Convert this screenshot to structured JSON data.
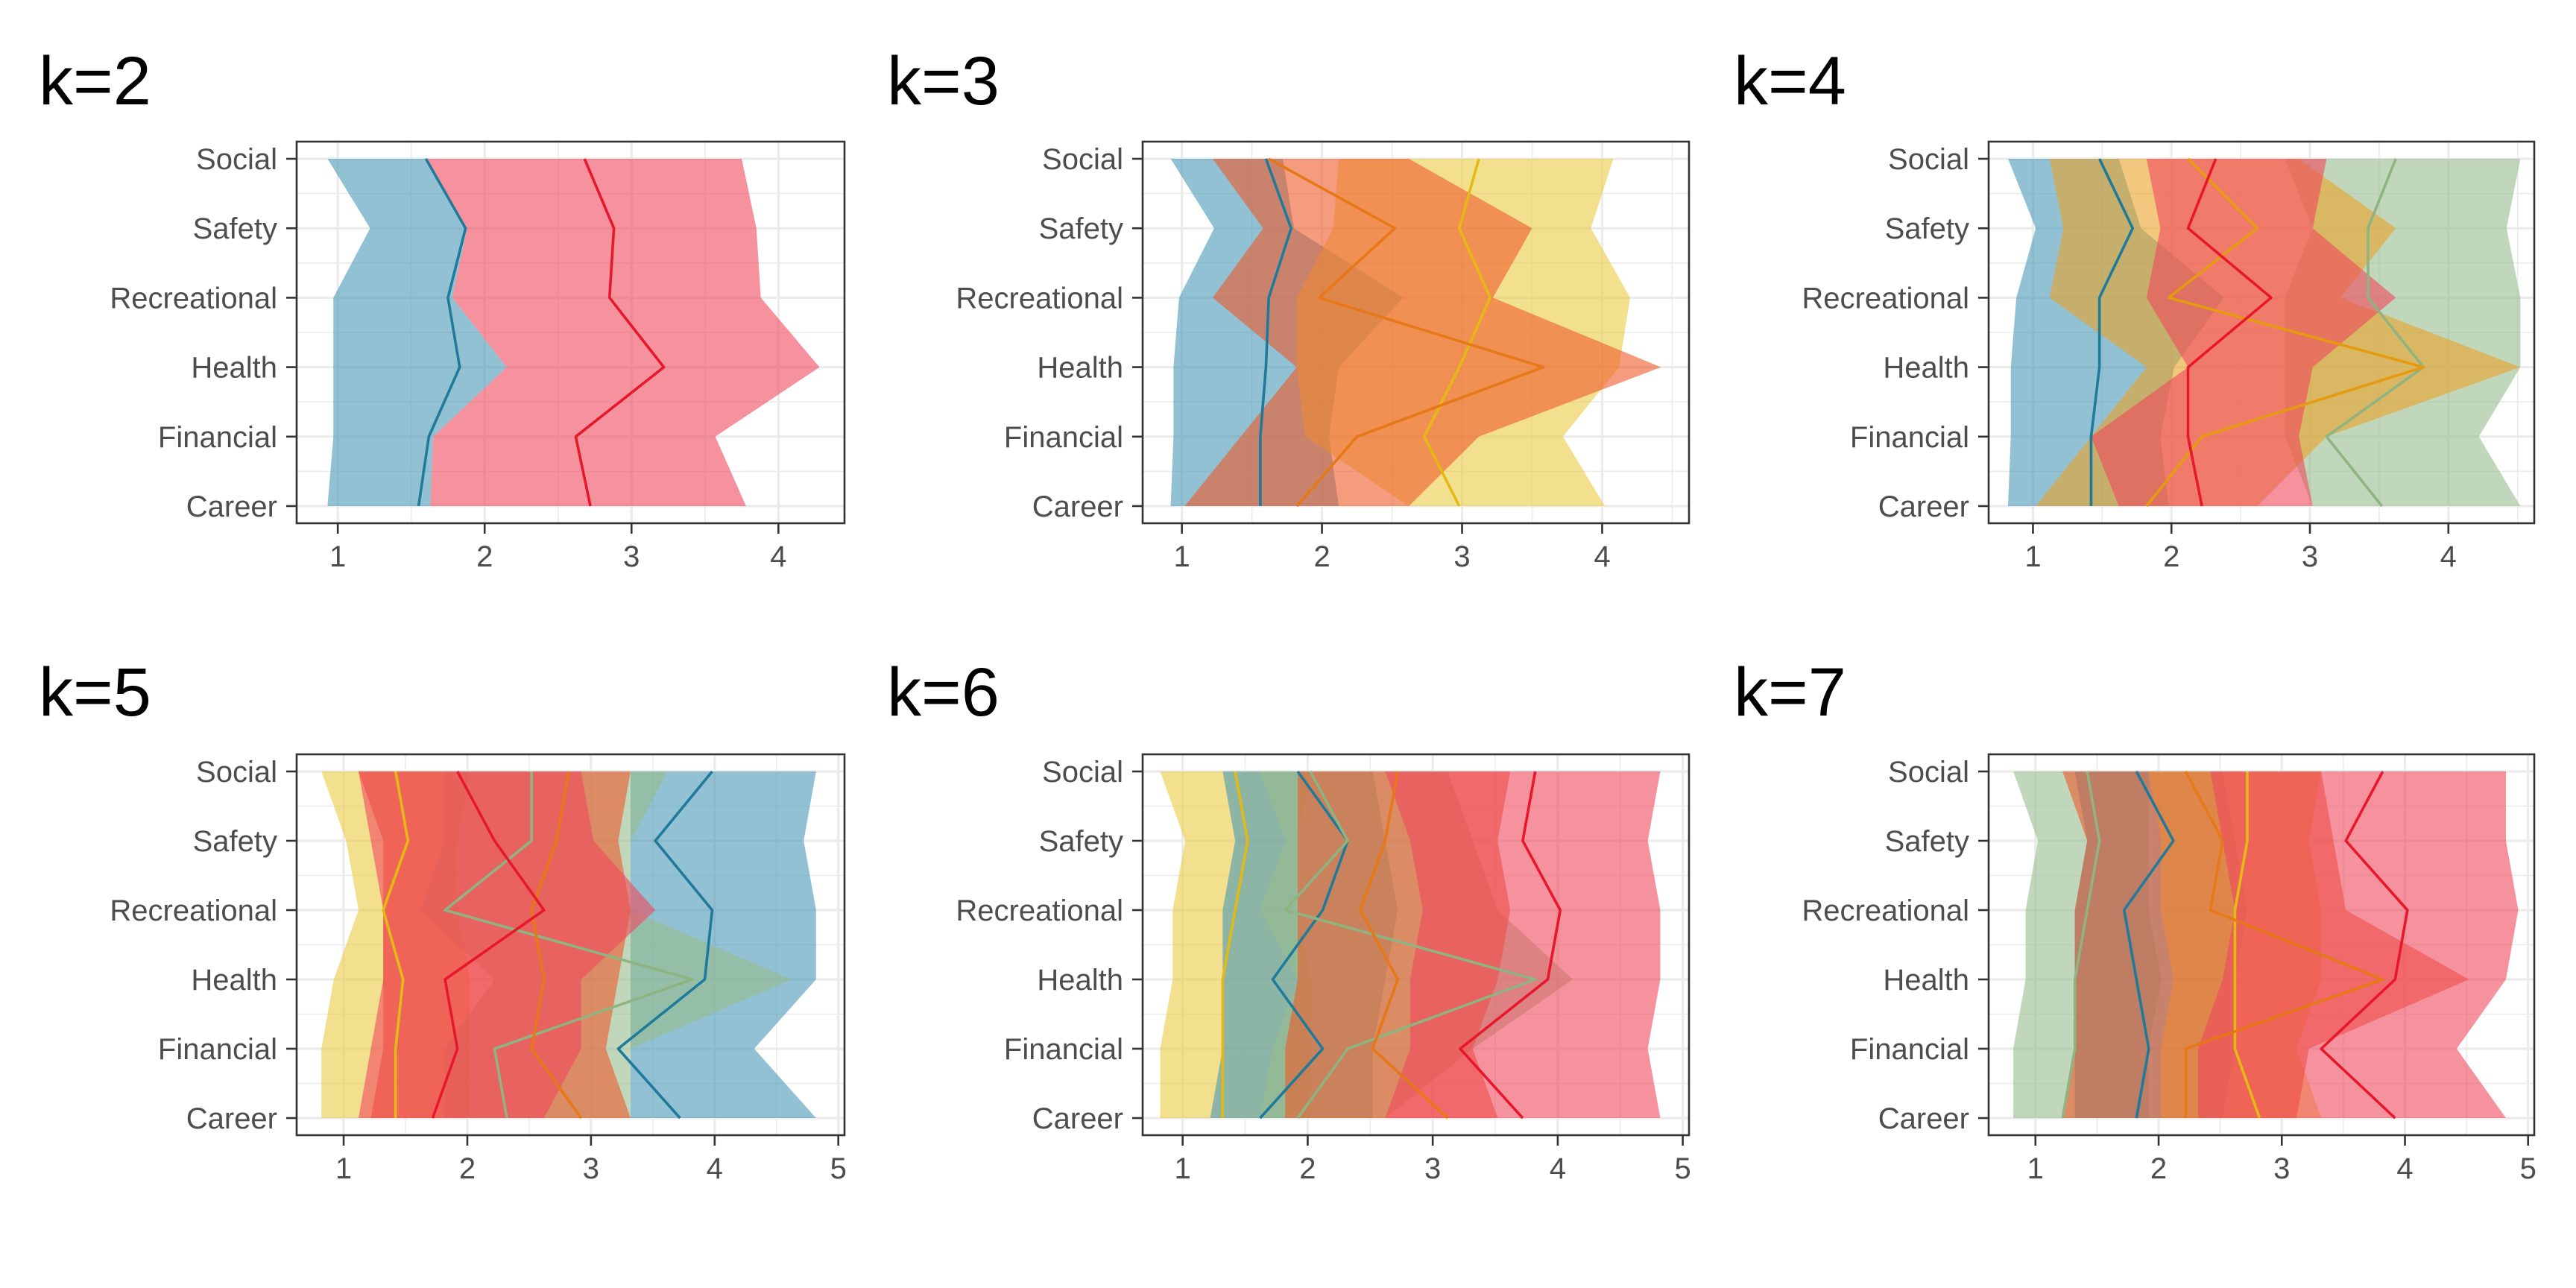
{
  "colors": {
    "blue": "#4a98b5",
    "blue_line": "#1f7a9b",
    "red": "#f0475e",
    "red_line": "#e8182c",
    "yellow": "#ebcc45",
    "yellow_line": "#e5b915",
    "orange": "#ee5a2a",
    "orange_line": "#e67817",
    "sage": "#98bd8d",
    "sage_line": "#8fb381",
    "teal": "#6ab09e",
    "teal_line": "#4aa69a",
    "panel_border": "#333333",
    "grid": "#ebebeb"
  },
  "chart_data": [
    {
      "type": "area",
      "title": "k=2",
      "categories": [
        "Career",
        "Financial",
        "Health",
        "Recreational",
        "Safety",
        "Social"
      ],
      "xlim": [
        0.72,
        4.45
      ],
      "xticks": [
        1,
        2,
        3,
        4
      ],
      "series": [
        {
          "color": "blue",
          "low": [
            0.93,
            0.97,
            0.97,
            0.97,
            1.22,
            0.93
          ],
          "mid": [
            1.55,
            1.62,
            1.83,
            1.75,
            1.87,
            1.6
          ],
          "high": [
            1.63,
            1.65,
            2.15,
            1.78,
            1.88,
            1.6
          ]
        },
        {
          "color": "red",
          "low": [
            1.63,
            1.65,
            2.15,
            1.78,
            1.88,
            1.6
          ],
          "mid": [
            2.72,
            2.62,
            3.22,
            2.85,
            2.88,
            2.68
          ],
          "high": [
            3.78,
            3.57,
            4.28,
            3.88,
            3.85,
            3.75
          ]
        }
      ]
    },
    {
      "type": "area",
      "title": "k=3",
      "categories": [
        "Career",
        "Financial",
        "Health",
        "Recreational",
        "Safety",
        "Social"
      ],
      "xlim": [
        0.72,
        4.62
      ],
      "xticks": [
        1,
        2,
        3,
        4
      ],
      "series": [
        {
          "color": "blue",
          "low": [
            0.92,
            0.94,
            0.94,
            0.98,
            1.23,
            0.92
          ],
          "mid": [
            1.56,
            1.56,
            1.6,
            1.62,
            1.78,
            1.6
          ],
          "high": [
            2.12,
            2.05,
            2.12,
            2.58,
            1.8,
            1.72
          ]
        },
        {
          "color": "yellow",
          "low": [
            2.62,
            1.88,
            1.82,
            1.82,
            2.08,
            2.12
          ],
          "mid": [
            2.98,
            2.73,
            2.98,
            3.2,
            2.98,
            3.12
          ],
          "high": [
            4.02,
            3.72,
            4.12,
            4.2,
            3.92,
            4.08
          ]
        },
        {
          "color": "orange",
          "low": [
            1.02,
            1.42,
            1.82,
            1.22,
            1.58,
            1.22
          ],
          "mid": [
            1.82,
            2.25,
            3.58,
            1.98,
            2.52,
            1.62
          ],
          "high": [
            2.62,
            3.12,
            4.42,
            3.22,
            3.5,
            2.62
          ]
        }
      ]
    },
    {
      "type": "area",
      "title": "k=4",
      "categories": [
        "Career",
        "Financial",
        "Health",
        "Recreational",
        "Safety",
        "Social"
      ],
      "xlim": [
        0.68,
        4.62
      ],
      "xticks": [
        1,
        2,
        3,
        4
      ],
      "series": [
        {
          "color": "blue",
          "low": [
            0.82,
            0.84,
            0.84,
            0.88,
            1.02,
            0.82
          ],
          "mid": [
            1.42,
            1.42,
            1.48,
            1.48,
            1.72,
            1.48
          ],
          "high": [
            1.98,
            1.92,
            2.02,
            2.38,
            1.78,
            1.62
          ]
        },
        {
          "color": "sage",
          "low": [
            3.02,
            2.82,
            2.82,
            2.82,
            3.02,
            2.82
          ],
          "mid": [
            3.52,
            3.12,
            3.82,
            3.42,
            3.42,
            3.62
          ],
          "high": [
            4.52,
            4.22,
            4.52,
            4.52,
            4.42,
            4.52
          ]
        },
        {
          "color": "orange_gold",
          "low": [
            1.02,
            1.42,
            1.82,
            1.12,
            1.22,
            1.12
          ],
          "mid": [
            1.82,
            2.22,
            3.82,
            1.98,
            2.62,
            2.12
          ],
          "high": [
            2.62,
            3.12,
            4.52,
            3.22,
            3.62,
            2.92
          ]
        },
        {
          "color": "red",
          "low": [
            1.62,
            1.42,
            2.12,
            1.82,
            1.92,
            1.82
          ],
          "mid": [
            2.22,
            2.12,
            2.12,
            2.72,
            2.12,
            2.32
          ],
          "high": [
            3.02,
            2.92,
            3.02,
            3.62,
            3.02,
            3.12
          ]
        }
      ]
    },
    {
      "type": "area",
      "title": "k=5",
      "categories": [
        "Career",
        "Financial",
        "Health",
        "Recreational",
        "Safety",
        "Social"
      ],
      "xlim": [
        0.62,
        5.05
      ],
      "xticks": [
        1,
        2,
        3,
        4,
        5
      ],
      "series": [
        {
          "color": "yellow",
          "low": [
            0.82,
            0.82,
            0.92,
            1.12,
            1.02,
            0.82
          ],
          "mid": [
            1.42,
            1.42,
            1.48,
            1.32,
            1.52,
            1.42
          ],
          "high": [
            2.02,
            2.02,
            2.02,
            1.92,
            1.92,
            2.02
          ]
        },
        {
          "color": "blue",
          "low": [
            3.32,
            3.32,
            3.32,
            3.32,
            3.32,
            3.32
          ],
          "mid": [
            3.72,
            3.22,
            3.92,
            3.98,
            3.52,
            3.98
          ],
          "high": [
            4.82,
            4.32,
            4.82,
            4.82,
            4.72,
            4.82
          ]
        },
        {
          "color": "sage",
          "low": [
            1.82,
            1.82,
            2.22,
            1.62,
            1.82,
            1.82
          ],
          "mid": [
            2.32,
            2.22,
            3.82,
            1.82,
            2.52,
            2.52
          ],
          "high": [
            3.32,
            3.32,
            4.62,
            3.32,
            3.32,
            3.62
          ]
        },
        {
          "color": "orange",
          "low": [
            1.22,
            1.32,
            1.32,
            1.32,
            1.32,
            1.12
          ],
          "mid": [
            2.92,
            2.52,
            2.62,
            2.52,
            2.72,
            2.82
          ],
          "high": [
            3.32,
            3.12,
            3.22,
            3.32,
            3.22,
            3.32
          ]
        },
        {
          "color": "red",
          "low": [
            1.12,
            1.22,
            1.32,
            1.32,
            1.22,
            1.12
          ],
          "mid": [
            1.72,
            1.92,
            1.82,
            2.62,
            2.22,
            1.92
          ],
          "high": [
            2.62,
            2.92,
            2.92,
            3.52,
            3.02,
            2.92
          ]
        }
      ]
    },
    {
      "type": "area",
      "title": "k=6",
      "categories": [
        "Career",
        "Financial",
        "Health",
        "Recreational",
        "Safety",
        "Social"
      ],
      "xlim": [
        0.68,
        5.05
      ],
      "xticks": [
        1,
        2,
        3,
        4,
        5
      ],
      "series": [
        {
          "color": "yellow",
          "low": [
            0.82,
            0.82,
            0.92,
            0.92,
            1.02,
            0.82
          ],
          "mid": [
            1.32,
            1.32,
            1.32,
            1.42,
            1.52,
            1.42
          ],
          "high": [
            2.02,
            2.02,
            2.02,
            1.92,
            1.92,
            2.02
          ]
        },
        {
          "color": "blue",
          "low": [
            1.22,
            1.32,
            1.32,
            1.32,
            1.42,
            1.32
          ],
          "mid": [
            1.62,
            2.12,
            1.72,
            2.12,
            2.32,
            1.92
          ],
          "high": [
            2.52,
            2.52,
            2.62,
            2.72,
            2.62,
            2.52
          ]
        },
        {
          "color": "sage",
          "low": [
            1.62,
            1.72,
            1.92,
            1.62,
            1.82,
            1.62
          ],
          "mid": [
            1.92,
            2.32,
            3.82,
            1.82,
            2.32,
            2.02
          ],
          "high": [
            2.62,
            3.32,
            4.12,
            3.52,
            3.32,
            3.12
          ]
        },
        {
          "color": "orange",
          "low": [
            1.82,
            1.82,
            1.92,
            1.92,
            1.92,
            1.92
          ],
          "mid": [
            3.12,
            2.52,
            2.72,
            2.42,
            2.62,
            2.72
          ],
          "high": [
            3.52,
            3.32,
            3.52,
            3.62,
            3.52,
            3.62
          ]
        },
        {
          "color": "red",
          "low": [
            2.62,
            2.82,
            2.82,
            2.92,
            2.82,
            2.62
          ],
          "mid": [
            3.72,
            3.22,
            3.92,
            4.02,
            3.72,
            3.82
          ],
          "high": [
            4.82,
            4.72,
            4.82,
            4.82,
            4.72,
            4.82
          ]
        }
      ]
    },
    {
      "type": "area",
      "title": "k=7",
      "categories": [
        "Career",
        "Financial",
        "Health",
        "Recreational",
        "Safety",
        "Social"
      ],
      "xlim": [
        0.62,
        5.05
      ],
      "xticks": [
        1,
        2,
        3,
        4,
        5
      ],
      "series": [
        {
          "color": "sage",
          "low": [
            0.82,
            0.82,
            0.92,
            0.92,
            1.02,
            0.82
          ],
          "mid": [
            1.22,
            1.32,
            1.32,
            1.42,
            1.52,
            1.42
          ],
          "high": [
            1.92,
            1.92,
            2.02,
            1.92,
            1.92,
            1.92
          ]
        },
        {
          "color": "blue",
          "low": [
            1.32,
            1.32,
            1.32,
            1.32,
            1.42,
            1.32
          ],
          "mid": [
            1.82,
            1.92,
            1.82,
            1.72,
            2.12,
            1.82
          ],
          "high": [
            2.52,
            2.62,
            2.62,
            2.72,
            2.62,
            2.52
          ]
        },
        {
          "color": "yellow",
          "low": [
            2.02,
            2.02,
            2.12,
            2.02,
            2.02,
            1.92
          ],
          "mid": [
            2.82,
            2.62,
            2.62,
            2.62,
            2.72,
            2.72
          ],
          "high": [
            3.32,
            3.12,
            3.32,
            3.32,
            3.22,
            3.32
          ]
        },
        {
          "color": "orange",
          "low": [
            1.22,
            1.32,
            1.32,
            1.32,
            1.42,
            1.22
          ],
          "mid": [
            2.22,
            2.22,
            3.82,
            2.42,
            2.52,
            2.22
          ],
          "high": [
            3.12,
            3.22,
            4.52,
            3.52,
            3.42,
            3.32
          ]
        },
        {
          "color": "red",
          "low": [
            2.32,
            2.32,
            2.52,
            2.62,
            2.52,
            2.42
          ],
          "mid": [
            3.92,
            3.32,
            3.92,
            4.02,
            3.52,
            3.82
          ],
          "high": [
            4.82,
            4.42,
            4.82,
            4.92,
            4.82,
            4.82
          ]
        }
      ]
    }
  ]
}
